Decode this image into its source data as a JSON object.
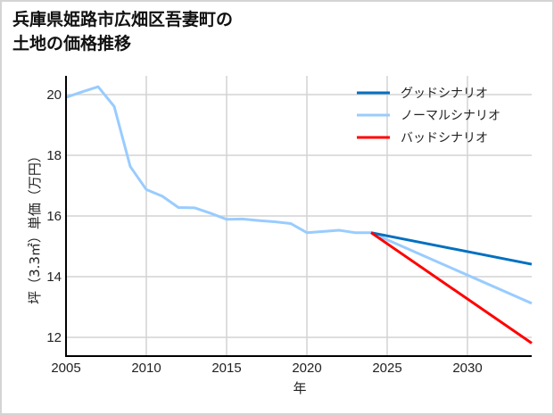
{
  "title_line1": "兵庫県姫路市広畑区吾妻町の",
  "title_line2": "土地の価格推移",
  "chart_data": {
    "type": "line",
    "title": "兵庫県姫路市広畑区吾妻町の土地の価格推移",
    "xlabel": "年",
    "ylabel": "坪（3.3㎡）単価（万円）",
    "xlim": [
      2005,
      2034
    ],
    "ylim": [
      11.35,
      20.6
    ],
    "xticks": [
      2005,
      2010,
      2015,
      2020,
      2025,
      2030
    ],
    "yticks": [
      12,
      14,
      16,
      18,
      20
    ],
    "grid": true,
    "legend_position": "upper right",
    "series": [
      {
        "name": "グッドシナリオ",
        "color": "#0070C0",
        "x": [
          2024,
          2034
        ],
        "values": [
          15.45,
          14.41
        ]
      },
      {
        "name": "ノーマルシナリオ",
        "color": "#99CCFF",
        "x": [
          2005,
          2006,
          2007,
          2008,
          2009,
          2010,
          2011,
          2012,
          2013,
          2014,
          2015,
          2016,
          2017,
          2018,
          2019,
          2020,
          2021,
          2022,
          2023,
          2024,
          2034
        ],
        "values": [
          19.91,
          20.09,
          20.26,
          19.61,
          17.63,
          16.87,
          16.65,
          16.28,
          16.27,
          16.09,
          15.89,
          15.9,
          15.85,
          15.81,
          15.75,
          15.45,
          15.49,
          15.53,
          15.45,
          15.45,
          13.12
        ]
      },
      {
        "name": "バッドシナリオ",
        "color": "#FF0000",
        "x": [
          2024,
          2034
        ],
        "values": [
          15.45,
          11.81
        ]
      }
    ]
  }
}
